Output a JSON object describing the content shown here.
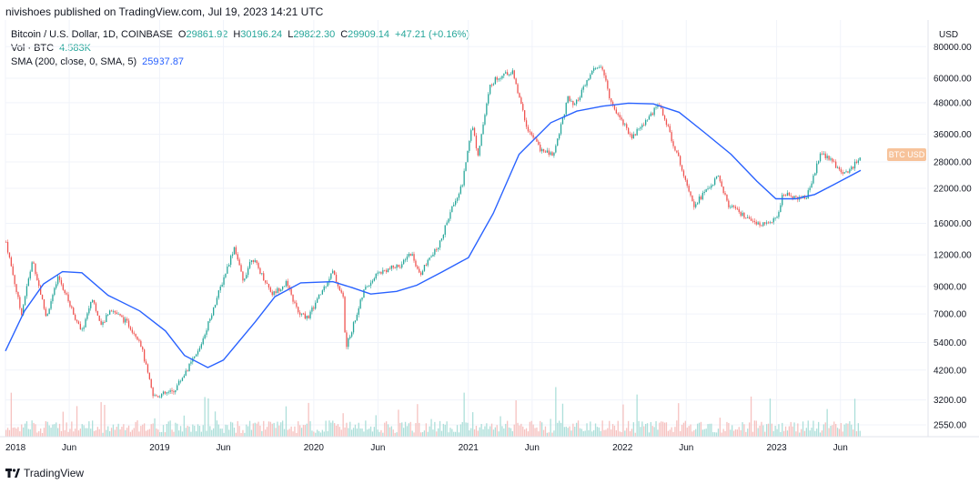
{
  "header": {
    "publisher": "nivishoes published on TradingView.com, Jul 19, 2023 14:21 UTC"
  },
  "legend": {
    "symbol": "Bitcoin / U.S. Dollar, 1D, COINBASE",
    "open_label": "O",
    "open": "29861.92",
    "high_label": "H",
    "high": "30196.24",
    "low_label": "L",
    "low": "29822.30",
    "close_label": "C",
    "close": "29909.14",
    "change": "+47.21 (+0.16%)",
    "vol_label": "Vol · BTC",
    "vol_value": "4.583K",
    "sma_label": "SMA (200, close, 0, SMA, 5)",
    "sma_value": "25937.87"
  },
  "footer": {
    "brand": "TradingView"
  },
  "colors": {
    "up": "#26a69a",
    "down": "#ef5350",
    "sma": "#2962ff",
    "price_tag": "#f7c39b",
    "grid": "#f0f3fa"
  },
  "chart_data": {
    "type": "line",
    "currency": "USD",
    "scale": "log",
    "y_ticks": [
      2550,
      3200,
      4200,
      5400,
      7000,
      9000,
      12000,
      16000,
      22000,
      28000,
      36000,
      48000,
      60000,
      80000
    ],
    "y_tick_labels": [
      "2550.00",
      "3200.00",
      "4200.00",
      "5400.00",
      "7000.00",
      "9000.00",
      "12000.00",
      "16000.00",
      "22000.00",
      "28000.00",
      "36000.00",
      "48000.00",
      "60000.00",
      "80000.00"
    ],
    "x_ticks": [
      "2018-01",
      "2018-06",
      "2019-01",
      "2019-06",
      "2020-01",
      "2020-06",
      "2021-01",
      "2021-06",
      "2022-01",
      "2022-06",
      "2023-01",
      "2023-06"
    ],
    "x_tick_labels": [
      "2018",
      "Jun",
      "2019",
      "Jun",
      "2020",
      "Jun",
      "2021",
      "Jun",
      "2022",
      "Jun",
      "2023",
      "Jun"
    ],
    "last_price_label": "BTC USD",
    "grid": true,
    "price_series": {
      "name": "Bitcoin / U.S. Dollar",
      "x": [
        "2018-01-01",
        "2018-02-06",
        "2018-03-05",
        "2018-04-06",
        "2018-05-05",
        "2018-06-29",
        "2018-07-24",
        "2018-08-14",
        "2018-09-04",
        "2018-10-15",
        "2018-11-14",
        "2018-12-15",
        "2019-02-01",
        "2019-04-02",
        "2019-05-14",
        "2019-06-26",
        "2019-07-16",
        "2019-08-06",
        "2019-09-24",
        "2019-10-26",
        "2019-11-25",
        "2019-12-17",
        "2020-02-13",
        "2020-03-12",
        "2020-03-14",
        "2020-04-29",
        "2020-06-01",
        "2020-07-27",
        "2020-08-17",
        "2020-09-05",
        "2020-10-21",
        "2020-11-25",
        "2020-12-17",
        "2021-01-08",
        "2021-01-22",
        "2021-02-21",
        "2021-03-13",
        "2021-04-14",
        "2021-05-19",
        "2021-06-22",
        "2021-07-20",
        "2021-08-23",
        "2021-09-07",
        "2021-10-20",
        "2021-11-10",
        "2021-12-04",
        "2022-01-22",
        "2022-03-28",
        "2022-05-09",
        "2022-06-18",
        "2022-08-15",
        "2022-09-06",
        "2022-11-09",
        "2022-12-30",
        "2023-01-14",
        "2023-03-10",
        "2023-04-14",
        "2023-06-15",
        "2023-07-19"
      ],
      "values": [
        13500,
        7000,
        11500,
        6800,
        9800,
        5900,
        8200,
        6200,
        7400,
        6450,
        5500,
        3300,
        3450,
        5000,
        8000,
        13000,
        9400,
        11800,
        8400,
        9300,
        7000,
        6800,
        10300,
        7900,
        5000,
        8800,
        10200,
        11000,
        12300,
        10000,
        13000,
        19000,
        23000,
        40000,
        30000,
        57000,
        61000,
        63500,
        38000,
        31000,
        29800,
        50000,
        46000,
        64000,
        67500,
        48000,
        35000,
        47500,
        30000,
        19000,
        24500,
        19000,
        15800,
        16500,
        20800,
        20000,
        30400,
        25000,
        29909
      ]
    },
    "sma_series": {
      "name": "SMA (200, close, 0, SMA, 5)",
      "x": [
        "2018-01-01",
        "2018-02-15",
        "2018-04-01",
        "2018-05-16",
        "2018-07-01",
        "2018-09-01",
        "2018-11-15",
        "2019-01-15",
        "2019-03-01",
        "2019-04-25",
        "2019-06-01",
        "2019-08-15",
        "2019-10-01",
        "2019-12-01",
        "2020-02-15",
        "2020-04-01",
        "2020-05-15",
        "2020-07-15",
        "2020-09-01",
        "2020-11-01",
        "2021-01-01",
        "2021-03-01",
        "2021-05-01",
        "2021-07-15",
        "2021-09-15",
        "2021-11-15",
        "2022-01-15",
        "2022-03-15",
        "2022-05-15",
        "2022-07-15",
        "2022-09-15",
        "2022-11-15",
        "2022-12-30",
        "2023-02-15",
        "2023-04-01",
        "2023-05-15",
        "2023-07-19"
      ],
      "values": [
        5000,
        7200,
        9200,
        10300,
        10200,
        8300,
        7200,
        6000,
        4800,
        4300,
        4600,
        6500,
        8200,
        9300,
        9400,
        8900,
        8400,
        8600,
        9100,
        10300,
        11700,
        17500,
        30000,
        40000,
        44500,
        46500,
        47800,
        47500,
        44000,
        36500,
        30000,
        23500,
        20000,
        20000,
        20800,
        22700,
        25937.87
      ]
    },
    "volume": {
      "unit": "BTC",
      "last": "4.583K"
    }
  }
}
